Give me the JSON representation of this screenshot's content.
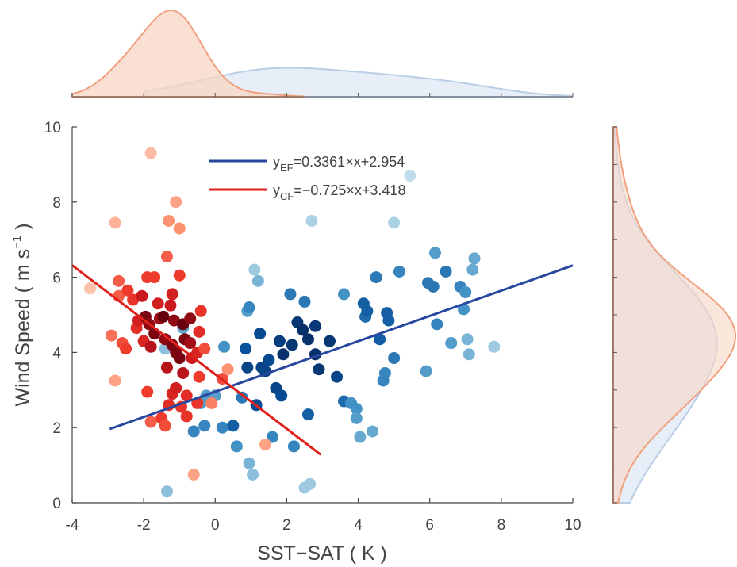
{
  "chart_data": {
    "type": "scatter",
    "xlabel": "SST−SAT ( K )",
    "ylabel_main": "Wind Speed ( m s",
    "ylabel_sup": "−1",
    "ylabel_end": " )",
    "xlim": [
      -4,
      10
    ],
    "ylim": [
      0,
      10
    ],
    "xticks": [
      "-4",
      "-2",
      "0",
      "2",
      "4",
      "6",
      "8",
      "10"
    ],
    "yticks": [
      "0",
      "2",
      "4",
      "6",
      "8",
      "10"
    ],
    "grid": false,
    "legend_position": "top-center",
    "colors": {
      "ef_line": "#2747a0",
      "cf_line": "#e0201b",
      "ef_density_fill": "#dde7f5",
      "ef_density_line": "#b9cde6",
      "cf_density_fill": "#f8d5c4",
      "cf_density_line": "#f1a07e"
    },
    "fits": [
      {
        "name_base": "y",
        "name_sub": "EF",
        "equation": "=0.3361×x+2.954",
        "slope": 0.3361,
        "intercept": 2.954,
        "x_range": [
          -2.95,
          10
        ]
      },
      {
        "name_base": "y",
        "name_sub": "CF",
        "equation": "=−0.725×x+3.418",
        "slope": -0.725,
        "intercept": 3.418,
        "x_range": [
          -4,
          2.95
        ]
      }
    ],
    "ef_points": [
      [
        -1.4,
        4.1,
        0.3
      ],
      [
        -1.35,
        0.3,
        0.3
      ],
      [
        -0.9,
        4.65,
        0.4
      ],
      [
        -0.4,
        2.65,
        0.45
      ],
      [
        -0.25,
        2.85,
        0.45
      ],
      [
        -0.6,
        1.9,
        0.55
      ],
      [
        -0.3,
        2.05,
        0.55
      ],
      [
        0.0,
        2.85,
        0.45
      ],
      [
        0.25,
        4.15,
        0.5
      ],
      [
        0.2,
        2.0,
        0.55
      ],
      [
        0.5,
        2.05,
        0.7
      ],
      [
        0.6,
        1.5,
        0.5
      ],
      [
        0.75,
        2.8,
        0.6
      ],
      [
        0.85,
        4.1,
        0.75
      ],
      [
        0.9,
        3.6,
        0.85
      ],
      [
        0.9,
        5.1,
        0.45
      ],
      [
        0.95,
        5.2,
        0.55
      ],
      [
        0.95,
        1.05,
        0.35
      ],
      [
        1.05,
        0.75,
        0.3
      ],
      [
        1.1,
        6.2,
        0.25
      ],
      [
        1.15,
        2.6,
        0.8
      ],
      [
        1.2,
        5.9,
        0.35
      ],
      [
        1.25,
        4.5,
        0.8
      ],
      [
        1.3,
        3.6,
        0.85
      ],
      [
        1.4,
        3.5,
        0.85
      ],
      [
        1.5,
        3.8,
        0.8
      ],
      [
        1.6,
        1.75,
        0.55
      ],
      [
        1.7,
        3.05,
        0.85
      ],
      [
        1.8,
        4.3,
        0.9
      ],
      [
        1.85,
        2.85,
        0.8
      ],
      [
        1.9,
        3.95,
        1.0
      ],
      [
        2.1,
        5.55,
        0.6
      ],
      [
        2.15,
        4.2,
        0.95
      ],
      [
        2.2,
        1.5,
        0.55
      ],
      [
        2.3,
        4.8,
        0.95
      ],
      [
        2.45,
        4.6,
        1.0
      ],
      [
        2.5,
        5.35,
        0.6
      ],
      [
        2.6,
        4.35,
        1.0
      ],
      [
        2.6,
        2.35,
        0.7
      ],
      [
        2.65,
        0.5,
        0.25
      ],
      [
        2.7,
        7.5,
        0.2
      ],
      [
        2.8,
        4.7,
        0.95
      ],
      [
        2.8,
        3.95,
        1.0
      ],
      [
        2.9,
        3.55,
        0.95
      ],
      [
        2.5,
        0.4,
        0.25
      ],
      [
        3.2,
        4.3,
        0.95
      ],
      [
        3.4,
        3.35,
        0.85
      ],
      [
        3.6,
        2.7,
        0.65
      ],
      [
        3.6,
        5.55,
        0.5
      ],
      [
        3.8,
        2.65,
        0.5
      ],
      [
        3.95,
        2.5,
        0.5
      ],
      [
        3.95,
        2.25,
        0.45
      ],
      [
        4.05,
        1.75,
        0.4
      ],
      [
        4.15,
        5.3,
        0.7
      ],
      [
        4.2,
        4.95,
        0.65
      ],
      [
        4.25,
        5.1,
        0.7
      ],
      [
        4.4,
        1.9,
        0.4
      ],
      [
        4.5,
        6.0,
        0.6
      ],
      [
        4.6,
        4.35,
        0.7
      ],
      [
        4.7,
        3.25,
        0.55
      ],
      [
        4.75,
        3.45,
        0.55
      ],
      [
        4.8,
        5.05,
        0.7
      ],
      [
        4.85,
        4.85,
        0.7
      ],
      [
        5.0,
        3.85,
        0.6
      ],
      [
        5.0,
        7.45,
        0.2
      ],
      [
        5.15,
        6.15,
        0.55
      ],
      [
        5.45,
        8.7,
        0.12
      ],
      [
        5.9,
        3.5,
        0.45
      ],
      [
        5.95,
        5.85,
        0.6
      ],
      [
        6.1,
        5.75,
        0.6
      ],
      [
        6.15,
        6.65,
        0.45
      ],
      [
        6.2,
        4.75,
        0.55
      ],
      [
        6.45,
        6.15,
        0.6
      ],
      [
        6.6,
        4.25,
        0.45
      ],
      [
        6.85,
        5.75,
        0.55
      ],
      [
        6.95,
        5.15,
        0.5
      ],
      [
        7.0,
        5.6,
        0.5
      ],
      [
        7.05,
        4.35,
        0.35
      ],
      [
        7.1,
        3.95,
        0.35
      ],
      [
        7.2,
        6.2,
        0.4
      ],
      [
        7.25,
        6.5,
        0.4
      ],
      [
        7.8,
        4.15,
        0.25
      ]
    ],
    "cf_points": [
      [
        -3.5,
        5.7,
        0.1
      ],
      [
        -2.9,
        4.45,
        0.35
      ],
      [
        -2.8,
        7.45,
        0.15
      ],
      [
        -2.8,
        3.25,
        0.2
      ],
      [
        -2.7,
        5.9,
        0.4
      ],
      [
        -2.7,
        5.5,
        0.4
      ],
      [
        -2.6,
        4.25,
        0.45
      ],
      [
        -2.5,
        4.1,
        0.5
      ],
      [
        -2.45,
        5.65,
        0.5
      ],
      [
        -2.3,
        5.4,
        0.55
      ],
      [
        -2.2,
        4.65,
        0.6
      ],
      [
        -2.15,
        4.85,
        0.7
      ],
      [
        -2.05,
        5.5,
        0.75
      ],
      [
        -2.0,
        4.3,
        0.65
      ],
      [
        -1.95,
        4.95,
        0.95
      ],
      [
        -1.9,
        2.95,
        0.5
      ],
      [
        -1.9,
        6.0,
        0.5
      ],
      [
        -1.85,
        4.75,
        0.9
      ],
      [
        -1.8,
        4.15,
        0.8
      ],
      [
        -1.8,
        2.15,
        0.4
      ],
      [
        -1.7,
        4.5,
        0.95
      ],
      [
        -1.7,
        6.0,
        0.5
      ],
      [
        -1.6,
        5.3,
        0.7
      ],
      [
        -1.55,
        4.9,
        0.85
      ],
      [
        -1.5,
        2.25,
        0.5
      ],
      [
        -1.45,
        4.95,
        1.0
      ],
      [
        -1.4,
        2.05,
        0.45
      ],
      [
        -1.4,
        4.35,
        0.9
      ],
      [
        -1.35,
        6.55,
        0.4
      ],
      [
        -1.35,
        3.6,
        0.8
      ],
      [
        -1.3,
        2.6,
        0.6
      ],
      [
        -1.3,
        7.5,
        0.25
      ],
      [
        -1.25,
        5.25,
        0.75
      ],
      [
        -1.2,
        2.9,
        0.65
      ],
      [
        -1.2,
        4.2,
        0.95
      ],
      [
        -1.2,
        5.55,
        0.7
      ],
      [
        -1.15,
        4.85,
        0.9
      ],
      [
        -1.1,
        4.0,
        0.95
      ],
      [
        -1.1,
        3.05,
        0.7
      ],
      [
        -1.1,
        8.0,
        0.2
      ],
      [
        -1.0,
        3.85,
        0.95
      ],
      [
        -1.0,
        6.05,
        0.5
      ],
      [
        -1.0,
        7.3,
        0.25
      ],
      [
        -0.95,
        2.55,
        0.55
      ],
      [
        -0.9,
        4.75,
        1.0
      ],
      [
        -0.9,
        3.45,
        0.8
      ],
      [
        -0.85,
        4.35,
        0.95
      ],
      [
        -0.8,
        2.3,
        0.55
      ],
      [
        -0.8,
        2.85,
        0.6
      ],
      [
        -0.7,
        4.9,
        0.9
      ],
      [
        -0.7,
        4.25,
        0.85
      ],
      [
        -0.65,
        3.85,
        0.75
      ],
      [
        -0.6,
        0.75,
        0.2
      ],
      [
        -0.5,
        2.65,
        0.55
      ],
      [
        -0.5,
        4.0,
        0.65
      ],
      [
        -0.45,
        3.35,
        0.5
      ],
      [
        -0.45,
        4.55,
        0.6
      ],
      [
        -0.4,
        5.1,
        0.55
      ],
      [
        -0.3,
        4.1,
        0.45
      ],
      [
        -0.1,
        2.65,
        0.3
      ],
      [
        0.2,
        3.3,
        0.45
      ],
      [
        0.35,
        3.55,
        0.25
      ],
      [
        -1.8,
        9.3,
        0.12
      ],
      [
        1.4,
        1.55,
        0.2
      ]
    ]
  }
}
